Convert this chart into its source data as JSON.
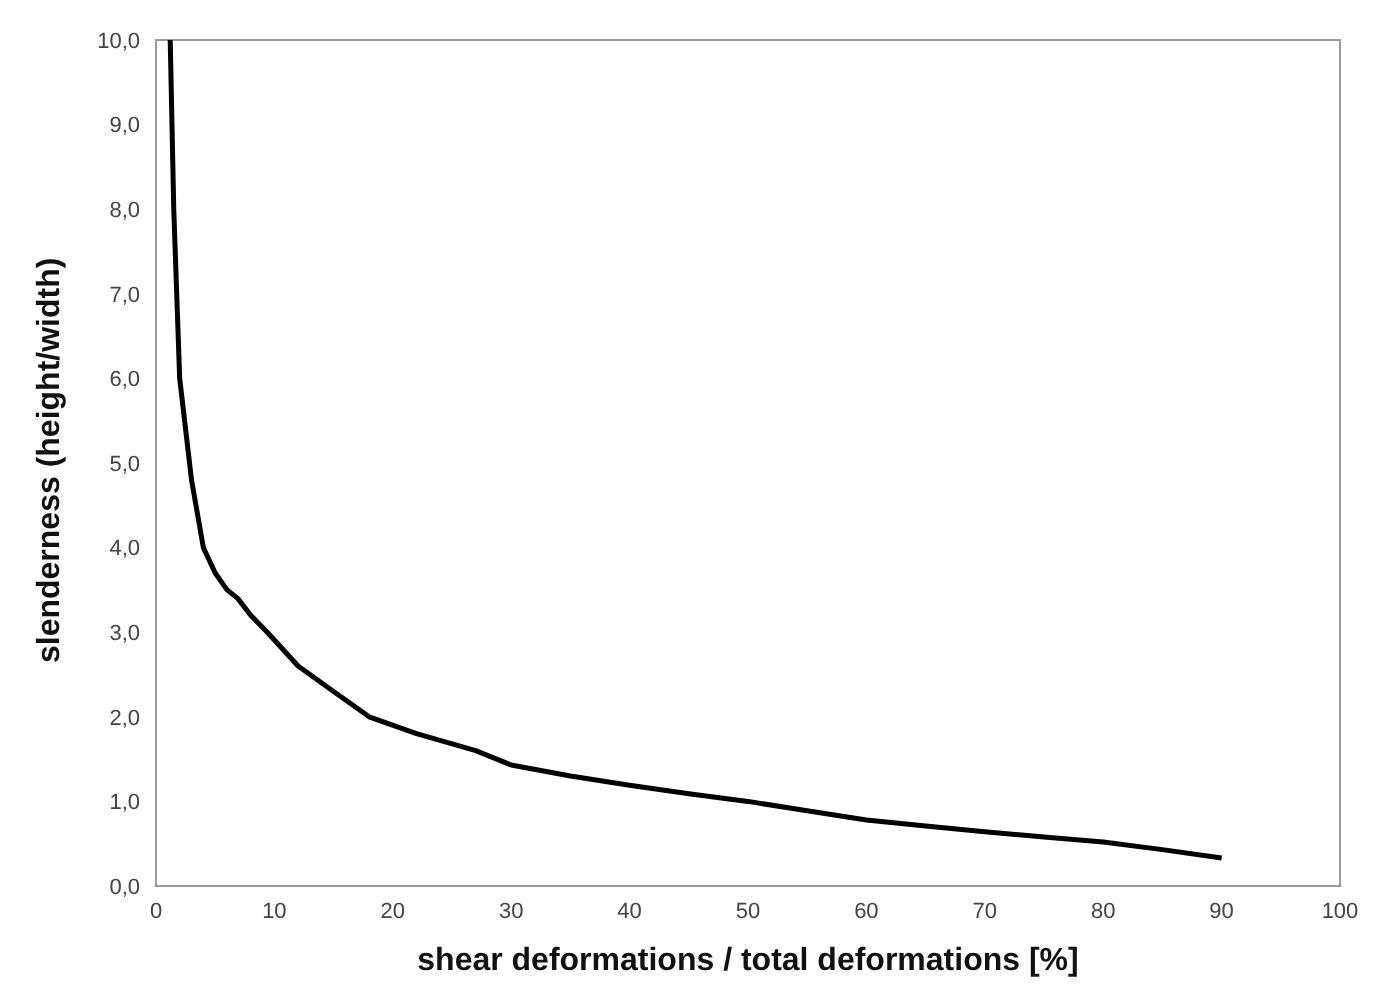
{
  "chart_data": {
    "type": "line",
    "xlabel": "shear deformations / total deformations [%]",
    "ylabel": "slenderness (height/width)",
    "x": [
      1.2,
      1.5,
      2,
      3,
      4,
      5,
      6,
      6.9,
      8,
      9.4,
      12,
      15,
      18,
      22,
      27,
      30,
      35,
      40,
      45,
      50,
      55,
      60,
      65,
      70,
      75,
      80,
      85,
      90
    ],
    "series": [
      {
        "color": "#000000",
        "values": [
          10,
          8,
          6,
          4.8,
          4,
          3.7,
          3.5,
          3.4,
          3.2,
          3,
          2.6,
          2.3,
          2,
          1.8,
          1.6,
          1.43,
          1.3,
          1.19,
          1.09,
          1,
          0.89,
          0.78,
          0.71,
          0.64,
          0.58,
          0.52,
          0.43,
          0.33
        ]
      }
    ],
    "xlim": [
      0,
      100
    ],
    "xticks": [
      0,
      10,
      20,
      30,
      40,
      50,
      60,
      70,
      80,
      90,
      100
    ],
    "ylim": [
      0,
      10
    ],
    "yticks": [
      {
        "value": 0,
        "label": "0,0"
      },
      {
        "value": 1,
        "label": "1,0"
      },
      {
        "value": 2,
        "label": "2,0"
      },
      {
        "value": 3,
        "label": "3,0"
      },
      {
        "value": 4,
        "label": "4,0"
      },
      {
        "value": 5,
        "label": "5,0"
      },
      {
        "value": 6,
        "label": "6,0"
      },
      {
        "value": 7,
        "label": "7,0"
      },
      {
        "value": 8,
        "label": "8,0"
      },
      {
        "value": 9,
        "label": "9,0"
      },
      {
        "value": 10,
        "label": "10,0"
      }
    ],
    "grid": false,
    "legend": false,
    "marker": "none",
    "line_style": "solid"
  }
}
